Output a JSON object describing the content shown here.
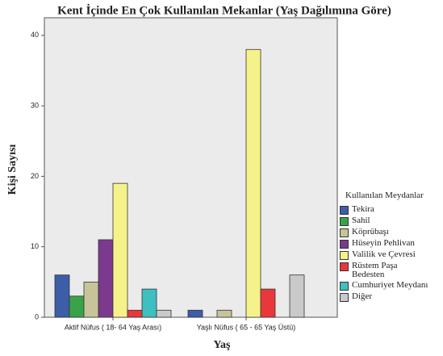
{
  "chart_data": {
    "type": "bar",
    "title": "Kent İçinde En Çok Kullanılan Mekanlar (Yaş Dağılımına Göre)",
    "x_label": "Yaş",
    "y_label": "Kişi Sayısı",
    "legend_title": "Kullanılan Meydanlar",
    "categories": [
      "Aktif Nüfus ( 18- 64 Yaş Arası)",
      "Yaşlı Nüfus ( 65 - 65 Yaş Üstü)"
    ],
    "series": [
      {
        "name": "Tekira",
        "color": "#3c5ea8",
        "values": [
          6,
          1
        ]
      },
      {
        "name": "Sahil",
        "color": "#3aa34a",
        "values": [
          3,
          0
        ]
      },
      {
        "name": "Köprübaşı",
        "color": "#c8c49a",
        "values": [
          5,
          1
        ]
      },
      {
        "name": "Hüseyin Pehlivan",
        "color": "#7b3a8e",
        "values": [
          11,
          0
        ]
      },
      {
        "name": "Valilik ve Çevresi",
        "color": "#f6f28a",
        "values": [
          19,
          38
        ]
      },
      {
        "name": "Rüstem Paşa Bedesten",
        "color": "#e8383c",
        "values": [
          1,
          4
        ]
      },
      {
        "name": "Cumhuriyet Meydanı",
        "color": "#3fbfbf",
        "values": [
          4,
          0
        ]
      },
      {
        "name": "Diğer",
        "color": "#c9c9c9",
        "values": [
          1,
          6
        ]
      }
    ],
    "ylim": [
      0,
      42.5
    ],
    "yticks": [
      0,
      10,
      20,
      30,
      40
    ]
  }
}
